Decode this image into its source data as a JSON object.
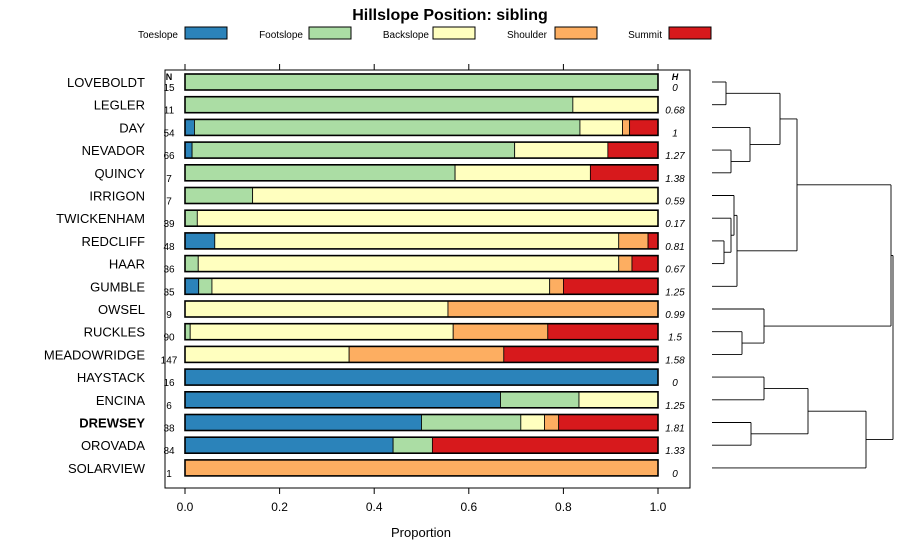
{
  "chart_data": {
    "type": "bar",
    "stacked": true,
    "orientation": "horizontal",
    "title": "Hillslope Position: sibling",
    "xlabel": "Proportion",
    "xlim": [
      0,
      1
    ],
    "xticks": [
      "0.0",
      "0.2",
      "0.4",
      "0.6",
      "0.8",
      "1.0"
    ],
    "n_header": "N",
    "h_header": "H",
    "legend": [
      {
        "name": "Toeslope",
        "color": "#2b83ba"
      },
      {
        "name": "Footslope",
        "color": "#abdda4"
      },
      {
        "name": "Backslope",
        "color": "#ffffbf"
      },
      {
        "name": "Shoulder",
        "color": "#fdae61"
      },
      {
        "name": "Summit",
        "color": "#d7191c"
      }
    ],
    "rows": [
      {
        "name": "LOVEBOLDT",
        "n": "15",
        "h": "0",
        "bold": false,
        "values": [
          0,
          1.0,
          0,
          0,
          0
        ]
      },
      {
        "name": "LEGLER",
        "n": "11",
        "h": "0.68",
        "bold": false,
        "values": [
          0,
          0.82,
          0.18,
          0,
          0
        ]
      },
      {
        "name": "DAY",
        "n": "54",
        "h": "1",
        "bold": false,
        "values": [
          0.02,
          0.815,
          0.09,
          0.015,
          0.06
        ]
      },
      {
        "name": "NEVADOR",
        "n": "66",
        "h": "1.27",
        "bold": false,
        "values": [
          0.015,
          0.682,
          0.197,
          0,
          0.106
        ]
      },
      {
        "name": "QUINCY",
        "n": "7",
        "h": "1.38",
        "bold": false,
        "values": [
          0,
          0.571,
          0.286,
          0,
          0.143
        ]
      },
      {
        "name": "IRRIGON",
        "n": "7",
        "h": "0.59",
        "bold": false,
        "values": [
          0,
          0.143,
          0.857,
          0,
          0
        ]
      },
      {
        "name": "TWICKENHAM",
        "n": "39",
        "h": "0.17",
        "bold": false,
        "values": [
          0,
          0.026,
          0.974,
          0,
          0
        ]
      },
      {
        "name": "REDCLIFF",
        "n": "48",
        "h": "0.81",
        "bold": false,
        "values": [
          0.063,
          0,
          0.854,
          0.062,
          0.021
        ]
      },
      {
        "name": "HAAR",
        "n": "36",
        "h": "0.67",
        "bold": false,
        "values": [
          0,
          0.028,
          0.889,
          0.028,
          0.055
        ]
      },
      {
        "name": "GUMBLE",
        "n": "35",
        "h": "1.25",
        "bold": false,
        "values": [
          0.029,
          0.028,
          0.714,
          0.029,
          0.2
        ]
      },
      {
        "name": "OWSEL",
        "n": "9",
        "h": "0.99",
        "bold": false,
        "values": [
          0,
          0,
          0.556,
          0.444,
          0
        ]
      },
      {
        "name": "RUCKLES",
        "n": "90",
        "h": "1.5",
        "bold": false,
        "values": [
          0,
          0.011,
          0.556,
          0.2,
          0.233
        ]
      },
      {
        "name": "MEADOWRIDGE",
        "n": "147",
        "h": "1.58",
        "bold": false,
        "values": [
          0,
          0,
          0.347,
          0.327,
          0.326
        ]
      },
      {
        "name": "HAYSTACK",
        "n": "16",
        "h": "0",
        "bold": false,
        "values": [
          1.0,
          0,
          0,
          0,
          0
        ]
      },
      {
        "name": "ENCINA",
        "n": "6",
        "h": "1.25",
        "bold": false,
        "values": [
          0.667,
          0.166,
          0.167,
          0,
          0
        ]
      },
      {
        "name": "DREWSEY",
        "n": "38",
        "h": "1.81",
        "bold": true,
        "values": [
          0.5,
          0.21,
          0.05,
          0.03,
          0.21
        ]
      },
      {
        "name": "OROVADA",
        "n": "84",
        "h": "1.33",
        "bold": false,
        "values": [
          0.44,
          0.083,
          0,
          0,
          0.477
        ]
      },
      {
        "name": "SOLARVIEW",
        "n": "1",
        "h": "0",
        "bold": false,
        "values": [
          0,
          0,
          0,
          1.0,
          0
        ]
      }
    ]
  }
}
